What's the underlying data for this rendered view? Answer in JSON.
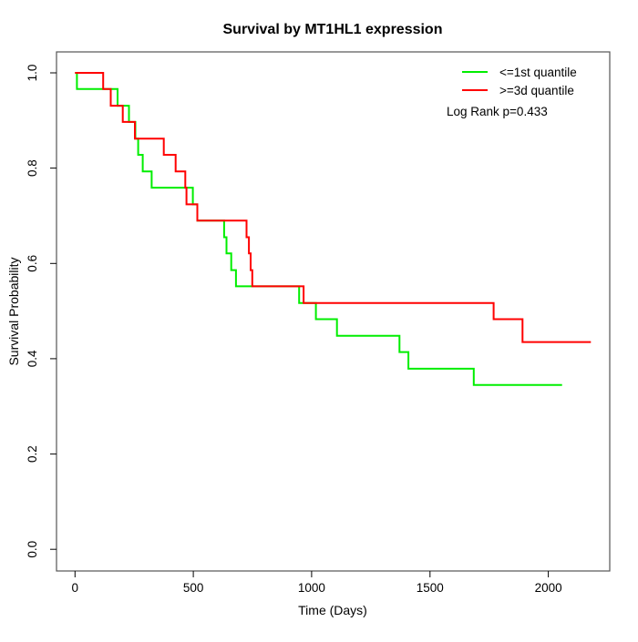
{
  "title": "Survival by MT1HL1 expression",
  "chart_data": {
    "type": "line",
    "subtype": "kaplan-meier-step-curves",
    "title": "Survival by MT1HL1 expression",
    "xlabel": "Time (Days)",
    "ylabel": "Survival Probability",
    "xlim": [
      0,
      2258
    ],
    "ylim": [
      0.0,
      1.0
    ],
    "grid": false,
    "x_ticks": [
      {
        "value": 0,
        "label": "0"
      },
      {
        "value": 500,
        "label": "500"
      },
      {
        "value": 1000,
        "label": "1000"
      },
      {
        "value": 1500,
        "label": "1500"
      },
      {
        "value": 2000,
        "label": "2000"
      }
    ],
    "y_ticks": [
      {
        "value": 0.0,
        "label": "0.0"
      },
      {
        "value": 0.2,
        "label": "0.2"
      },
      {
        "value": 0.4,
        "label": "0.4"
      },
      {
        "value": 0.6,
        "label": "0.6"
      },
      {
        "value": 0.8,
        "label": "0.8"
      },
      {
        "value": 1.0,
        "label": "1.0"
      }
    ],
    "legend": {
      "position": "top-right",
      "entries": [
        {
          "label": "<=1st quantile",
          "color": "#00EE00"
        },
        {
          "label": ">=3d quantile",
          "color": "#FF0000"
        }
      ]
    },
    "annotation": "Log Rank p=0.433",
    "series": [
      {
        "name": "<=1st quantile",
        "color": "#00EE00",
        "end_time": 2058,
        "steps": [
          [
            0,
            1.0
          ],
          [
            8,
            0.966
          ],
          [
            180,
            0.931
          ],
          [
            228,
            0.897
          ],
          [
            255,
            0.862
          ],
          [
            267,
            0.828
          ],
          [
            286,
            0.793
          ],
          [
            324,
            0.759
          ],
          [
            498,
            0.724
          ],
          [
            517,
            0.69
          ],
          [
            630,
            0.655
          ],
          [
            640,
            0.621
          ],
          [
            660,
            0.586
          ],
          [
            680,
            0.552
          ],
          [
            947,
            0.517
          ],
          [
            1018,
            0.483
          ],
          [
            1107,
            0.448
          ],
          [
            1371,
            0.414
          ],
          [
            1409,
            0.379
          ],
          [
            1685,
            0.345
          ]
        ]
      },
      {
        "name": ">=3d quantile",
        "color": "#FF0000",
        "end_time": 2180,
        "steps": [
          [
            0,
            1.0
          ],
          [
            119,
            0.966
          ],
          [
            151,
            0.931
          ],
          [
            202,
            0.897
          ],
          [
            253,
            0.862
          ],
          [
            375,
            0.828
          ],
          [
            425,
            0.793
          ],
          [
            466,
            0.759
          ],
          [
            471,
            0.724
          ],
          [
            517,
            0.69
          ],
          [
            725,
            0.655
          ],
          [
            735,
            0.621
          ],
          [
            742,
            0.586
          ],
          [
            749,
            0.552
          ],
          [
            966,
            0.517
          ],
          [
            1769,
            0.483
          ],
          [
            1891,
            0.435
          ]
        ]
      }
    ]
  }
}
